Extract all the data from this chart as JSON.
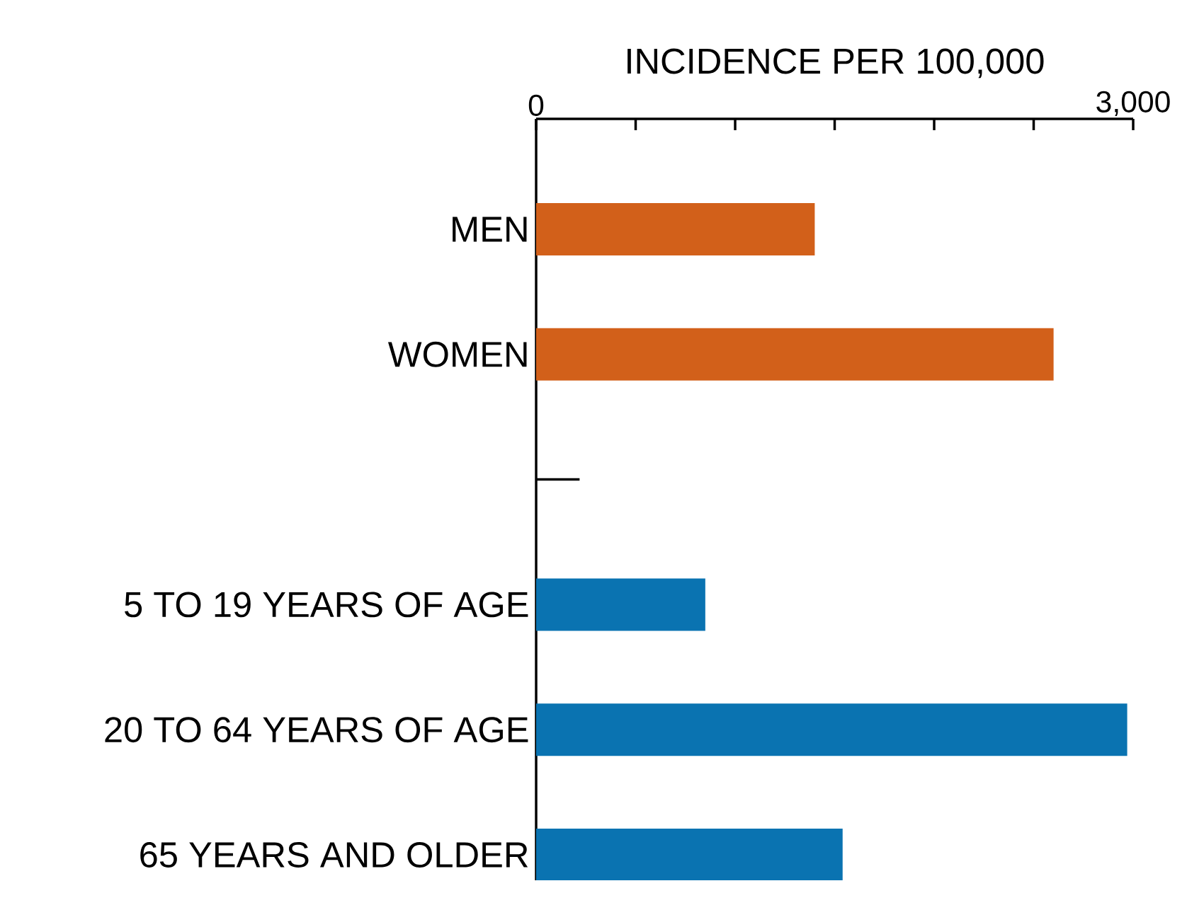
{
  "chart_data": {
    "type": "bar",
    "orientation": "horizontal",
    "xlabel": "INCIDENCE PER 100,000",
    "categories": [
      "MEN",
      "WOMEN",
      null,
      "5 TO 19 YEARS OF AGE",
      "20 TO 64 YEARS OF AGE",
      "65 YEARS AND OLDER"
    ],
    "values": [
      1400,
      2600,
      null,
      850,
      2970,
      1540
    ],
    "colors": [
      "#d2601a",
      "#d2601a",
      null,
      "#0a73b1",
      "#0a73b1",
      "#0a73b1"
    ],
    "xlim": [
      0,
      3000
    ],
    "xticks": [
      0,
      {
        "value": 500,
        "label": null
      },
      {
        "value": 1000,
        "label": null
      },
      {
        "value": 1500,
        "label": null
      },
      {
        "value": 2000,
        "label": null
      },
      {
        "value": 2500,
        "label": null
      },
      {
        "value": 3000,
        "label": "3,000"
      }
    ]
  }
}
